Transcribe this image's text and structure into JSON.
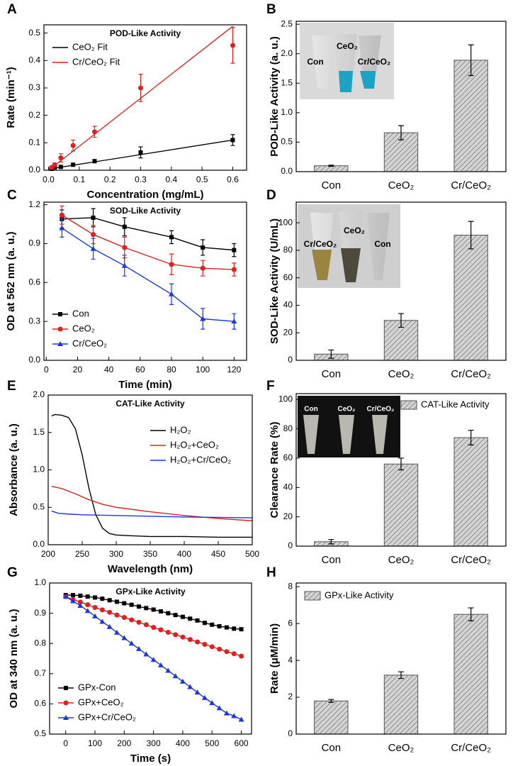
{
  "chart_data": [
    {
      "type": "scatter",
      "panel": "A",
      "title": "POD-Like Activity",
      "xlabel": "Concentration (mg/mL)",
      "ylabel": "Rate (min⁻¹)",
      "xlim": [
        -0.015,
        0.645
      ],
      "ylim": [
        0,
        0.53
      ],
      "xticks": [
        {
          "value": 0,
          "label": "0.0"
        },
        0.1,
        0.2,
        0.3,
        0.4,
        0.5,
        0.6
      ],
      "yticks": [
        {
          "value": 0,
          "label": "0.0"
        },
        0.1,
        0.2,
        0.3,
        0.4,
        0.5
      ],
      "legend": "upper left",
      "series": [
        {
          "name": "CeO₂ Fit",
          "color": "#000000",
          "marker": "square",
          "x": [
            0.01,
            0.02,
            0.04,
            0.08,
            0.15,
            0.3,
            0.6
          ],
          "values": [
            0.005,
            0.01,
            0.012,
            0.02,
            0.033,
            0.065,
            0.11
          ],
          "errors": [
            0.003,
            0.003,
            0.004,
            0.005,
            0.006,
            0.02,
            0.02
          ],
          "fit": {
            "x": [
              0,
              0.6
            ],
            "values": [
              0.004,
              0.11
            ]
          }
        },
        {
          "name": "Cr/CeO₂ Fit",
          "color": "#e02020",
          "marker": "circle",
          "x": [
            0.01,
            0.02,
            0.04,
            0.08,
            0.15,
            0.3,
            0.6
          ],
          "values": [
            0.01,
            0.02,
            0.045,
            0.09,
            0.14,
            0.3,
            0.455
          ],
          "errors": [
            0.005,
            0.005,
            0.015,
            0.02,
            0.02,
            0.05,
            0.065
          ],
          "fit": {
            "x": [
              0,
              0.6
            ],
            "values": [
              0,
              0.525
            ]
          }
        }
      ]
    },
    {
      "type": "bar",
      "panel": "B",
      "ylabel": "POD-Like Activity (a. u.)",
      "categories": [
        "Con",
        "CeO₂",
        "Cr/CeO₂"
      ],
      "values": [
        0.1,
        0.66,
        1.89
      ],
      "errors": [
        0.01,
        0.12,
        0.26
      ],
      "color": "#8c8c8c",
      "ylim": [
        0,
        2.55
      ],
      "yticks": [
        {
          "value": 0,
          "label": "0.0"
        },
        0.5,
        {
          "value": 1,
          "label": "1.0"
        },
        1.5,
        {
          "value": 2,
          "label": "2.0"
        },
        2.5
      ],
      "inset_labels": [
        "Con",
        "CeO₂",
        "Cr/CeO₂"
      ]
    },
    {
      "type": "line",
      "panel": "C",
      "title": "SOD-Like Activity",
      "xlabel": "Time (min)",
      "ylabel": "OD at 562 nm (a. u.)",
      "xlim": [
        -1.5,
        128
      ],
      "ylim": [
        0,
        1.22
      ],
      "xticks": [
        0,
        20,
        40,
        60,
        80,
        100,
        120
      ],
      "yticks": [
        {
          "value": 0,
          "label": "0.0"
        },
        0.3,
        0.6,
        0.9,
        1.2
      ],
      "legend": "lower left",
      "x": [
        10,
        30,
        50,
        80,
        100,
        120
      ],
      "series": [
        {
          "name": "Con",
          "color": "#000000",
          "marker": "square",
          "values": [
            1.09,
            1.1,
            1.03,
            0.95,
            0.87,
            0.85
          ],
          "errors": [
            0.07,
            0.07,
            0.07,
            0.05,
            0.06,
            0.05
          ]
        },
        {
          "name": "CeO₂",
          "color": "#e02020",
          "marker": "circle",
          "values": [
            1.12,
            0.97,
            0.87,
            0.74,
            0.71,
            0.7
          ],
          "errors": [
            0.07,
            0.07,
            0.08,
            0.08,
            0.06,
            0.05
          ]
        },
        {
          "name": "Cr/CeO₂",
          "color": "#1f35e0",
          "marker": "triangle",
          "values": [
            1.02,
            0.86,
            0.73,
            0.51,
            0.32,
            0.3
          ],
          "errors": [
            0.07,
            0.08,
            0.08,
            0.08,
            0.08,
            0.06
          ]
        }
      ]
    },
    {
      "type": "bar",
      "panel": "D",
      "ylabel": "SOD-Like Activity (U/mL)",
      "categories": [
        "Con",
        "CeO₂",
        "Cr/CeO₂"
      ],
      "values": [
        4.5,
        29,
        91
      ],
      "errors": [
        3,
        5,
        10
      ],
      "color": "#8c8c8c",
      "ylim": [
        0,
        115
      ],
      "yticks": [
        0,
        20,
        40,
        60,
        80,
        100
      ],
      "inset_labels": [
        "Cr/CeO₂",
        "CeO₂",
        "Con"
      ]
    },
    {
      "type": "line",
      "panel": "E",
      "title": "CAT-Like Activity",
      "xlabel": "Wavelength (nm)",
      "ylabel": "Absorbance (a. u.)",
      "xlim": [
        200,
        500
      ],
      "ylim": [
        0,
        2
      ],
      "xticks": [
        200,
        250,
        300,
        350,
        400,
        450,
        500
      ],
      "yticks": [
        {
          "value": 0,
          "label": "0.0"
        },
        0.5,
        {
          "value": 1,
          "label": "1.0"
        },
        1.5,
        {
          "value": 2,
          "label": "2.0"
        }
      ],
      "legend": "center right",
      "series": [
        {
          "name": "H₂O₂",
          "color": "#000000",
          "x": [
            205,
            210,
            220,
            230,
            240,
            250,
            260,
            270,
            280,
            290,
            300,
            320,
            350,
            400,
            450,
            500
          ],
          "values": [
            1.72,
            1.74,
            1.73,
            1.7,
            1.55,
            1.2,
            0.75,
            0.4,
            0.22,
            0.15,
            0.13,
            0.12,
            0.11,
            0.11,
            0.1,
            0.1
          ]
        },
        {
          "name": "H₂O₂+CeO₂",
          "color": "#e02020",
          "x": [
            205,
            220,
            240,
            260,
            280,
            300,
            350,
            400,
            450,
            500
          ],
          "values": [
            0.78,
            0.75,
            0.68,
            0.6,
            0.54,
            0.5,
            0.44,
            0.39,
            0.35,
            0.32
          ]
        },
        {
          "name": "H₂O₂+Cr/CeO₂",
          "color": "#1f35e0",
          "x": [
            205,
            215,
            230,
            250,
            300,
            400,
            500
          ],
          "values": [
            0.45,
            0.42,
            0.41,
            0.4,
            0.39,
            0.37,
            0.36
          ]
        }
      ]
    },
    {
      "type": "bar",
      "panel": "F",
      "ylabel": "Clearance Rate (%)",
      "categories": [
        "Con",
        "CeO₂",
        "Cr/CeO₂"
      ],
      "legend": "upper right",
      "series": [
        {
          "name": "CAT-Like Activity",
          "values": [
            3,
            56,
            74
          ],
          "errors": [
            1.5,
            4,
            5
          ]
        }
      ],
      "color": "#8c8c8c",
      "ylim": [
        0,
        104
      ],
      "yticks": [
        0,
        20,
        40,
        60,
        80,
        100
      ],
      "inset_labels": [
        "Con",
        "CeO₂",
        "Cr/CeO₂"
      ]
    },
    {
      "type": "line",
      "panel": "G",
      "title": "GPx-Like Activity",
      "xlabel": "Time (s)",
      "ylabel": "OD at 340 nm (a. u.)",
      "xlim": [
        -55,
        635
      ],
      "ylim": [
        0.5,
        1
      ],
      "xticks": [
        0,
        100,
        200,
        300,
        400,
        500,
        600
      ],
      "yticks": [
        0.5,
        0.6,
        0.7,
        0.8,
        0.9,
        {
          "value": 1,
          "label": "1.0"
        }
      ],
      "legend": "lower left",
      "x": [
        0,
        25,
        50,
        75,
        100,
        125,
        150,
        175,
        200,
        225,
        250,
        275,
        300,
        325,
        350,
        375,
        400,
        425,
        450,
        475,
        500,
        525,
        550,
        575,
        600
      ],
      "series": [
        {
          "name": "GPx-Con",
          "color": "#000000",
          "marker": "square",
          "values": [
            0.96,
            0.96,
            0.958,
            0.955,
            0.952,
            0.948,
            0.943,
            0.938,
            0.933,
            0.928,
            0.922,
            0.917,
            0.912,
            0.906,
            0.9,
            0.894,
            0.888,
            0.882,
            0.876,
            0.868,
            0.862,
            0.857,
            0.853,
            0.849,
            0.847
          ]
        },
        {
          "name": "GPx+CeO₂",
          "color": "#e02020",
          "marker": "circle",
          "values": [
            0.955,
            0.945,
            0.937,
            0.928,
            0.919,
            0.911,
            0.903,
            0.894,
            0.886,
            0.878,
            0.87,
            0.862,
            0.853,
            0.845,
            0.837,
            0.829,
            0.821,
            0.813,
            0.805,
            0.797,
            0.789,
            0.781,
            0.773,
            0.766,
            0.758
          ]
        },
        {
          "name": "GPx+Cr/CeO₂",
          "color": "#1f35e0",
          "marker": "triangle",
          "values": [
            0.955,
            0.94,
            0.925,
            0.908,
            0.89,
            0.872,
            0.855,
            0.836,
            0.818,
            0.8,
            0.782,
            0.764,
            0.746,
            0.728,
            0.71,
            0.692,
            0.674,
            0.656,
            0.638,
            0.62,
            0.603,
            0.586,
            0.569,
            0.56,
            0.548
          ]
        }
      ]
    },
    {
      "type": "bar",
      "panel": "H",
      "ylabel": "Rate (μM/min)",
      "categories": [
        "Con",
        "CeO₂",
        "Cr/CeO₂"
      ],
      "legend": "upper left",
      "series": [
        {
          "name": "GPx-Like Activity",
          "values": [
            1.8,
            3.2,
            6.5
          ],
          "errors": [
            0.08,
            0.18,
            0.35
          ]
        }
      ],
      "color": "#8c8c8c",
      "ylim": [
        0,
        8.2
      ],
      "yticks": [
        0,
        2,
        4,
        6,
        8
      ]
    }
  ]
}
